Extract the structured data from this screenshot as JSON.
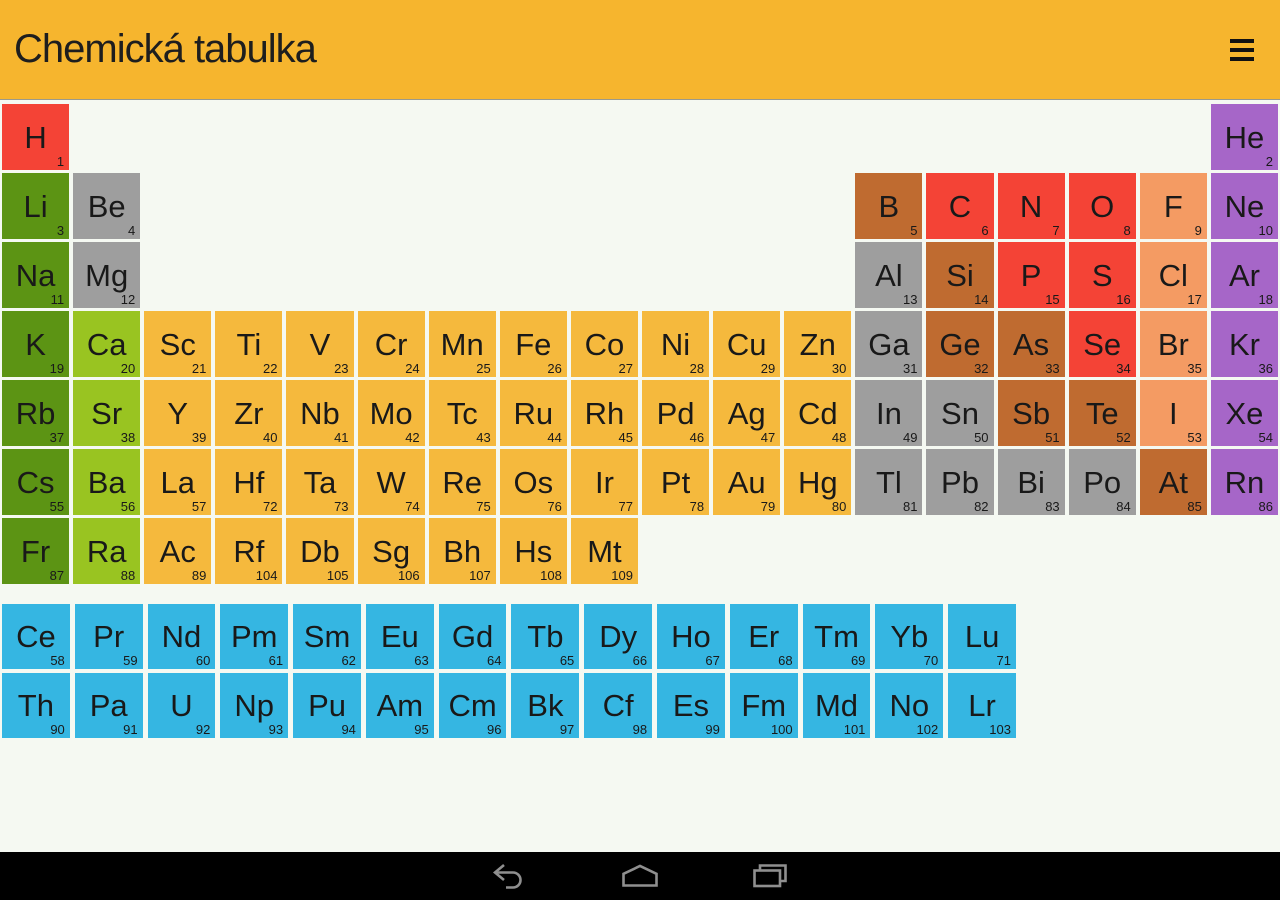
{
  "header": {
    "title": "Chemická tabulka",
    "menu_icon": "hamburger-icon"
  },
  "colors": {
    "appbar_bg": "#F6B52E",
    "page_bg": "#F5F9F2",
    "navbar_bg": "#000000",
    "nav_icon": "#8F8F8F",
    "alkali": "#5C9414",
    "alkaline": "#99C421",
    "metal": "#9E9E9E",
    "transition": "#F5B93D",
    "metalloid": "#BF6B30",
    "nonmetal": "#F44336",
    "halogen": "#F49B63",
    "noble": "#A666C8",
    "fblock": "#35B6E2"
  },
  "periodic_table": {
    "columns": 18,
    "rows": 7,
    "elements": [
      {
        "symbol": "H",
        "number": 1,
        "row": 1,
        "col": 1,
        "category": "nonmetal"
      },
      {
        "symbol": "He",
        "number": 2,
        "row": 1,
        "col": 18,
        "category": "noble"
      },
      {
        "symbol": "Li",
        "number": 3,
        "row": 2,
        "col": 1,
        "category": "alkali"
      },
      {
        "symbol": "Be",
        "number": 4,
        "row": 2,
        "col": 2,
        "category": "metal"
      },
      {
        "symbol": "B",
        "number": 5,
        "row": 2,
        "col": 13,
        "category": "metalloid"
      },
      {
        "symbol": "C",
        "number": 6,
        "row": 2,
        "col": 14,
        "category": "nonmetal"
      },
      {
        "symbol": "N",
        "number": 7,
        "row": 2,
        "col": 15,
        "category": "nonmetal"
      },
      {
        "symbol": "O",
        "number": 8,
        "row": 2,
        "col": 16,
        "category": "nonmetal"
      },
      {
        "symbol": "F",
        "number": 9,
        "row": 2,
        "col": 17,
        "category": "halogen"
      },
      {
        "symbol": "Ne",
        "number": 10,
        "row": 2,
        "col": 18,
        "category": "noble"
      },
      {
        "symbol": "Na",
        "number": 11,
        "row": 3,
        "col": 1,
        "category": "alkali"
      },
      {
        "symbol": "Mg",
        "number": 12,
        "row": 3,
        "col": 2,
        "category": "metal"
      },
      {
        "symbol": "Al",
        "number": 13,
        "row": 3,
        "col": 13,
        "category": "metal"
      },
      {
        "symbol": "Si",
        "number": 14,
        "row": 3,
        "col": 14,
        "category": "metalloid"
      },
      {
        "symbol": "P",
        "number": 15,
        "row": 3,
        "col": 15,
        "category": "nonmetal"
      },
      {
        "symbol": "S",
        "number": 16,
        "row": 3,
        "col": 16,
        "category": "nonmetal"
      },
      {
        "symbol": "Cl",
        "number": 17,
        "row": 3,
        "col": 17,
        "category": "halogen"
      },
      {
        "symbol": "Ar",
        "number": 18,
        "row": 3,
        "col": 18,
        "category": "noble"
      },
      {
        "symbol": "K",
        "number": 19,
        "row": 4,
        "col": 1,
        "category": "alkali"
      },
      {
        "symbol": "Ca",
        "number": 20,
        "row": 4,
        "col": 2,
        "category": "alkaline"
      },
      {
        "symbol": "Sc",
        "number": 21,
        "row": 4,
        "col": 3,
        "category": "transition"
      },
      {
        "symbol": "Ti",
        "number": 22,
        "row": 4,
        "col": 4,
        "category": "transition"
      },
      {
        "symbol": "V",
        "number": 23,
        "row": 4,
        "col": 5,
        "category": "transition"
      },
      {
        "symbol": "Cr",
        "number": 24,
        "row": 4,
        "col": 6,
        "category": "transition"
      },
      {
        "symbol": "Mn",
        "number": 25,
        "row": 4,
        "col": 7,
        "category": "transition"
      },
      {
        "symbol": "Fe",
        "number": 26,
        "row": 4,
        "col": 8,
        "category": "transition"
      },
      {
        "symbol": "Co",
        "number": 27,
        "row": 4,
        "col": 9,
        "category": "transition"
      },
      {
        "symbol": "Ni",
        "number": 28,
        "row": 4,
        "col": 10,
        "category": "transition"
      },
      {
        "symbol": "Cu",
        "number": 29,
        "row": 4,
        "col": 11,
        "category": "transition"
      },
      {
        "symbol": "Zn",
        "number": 30,
        "row": 4,
        "col": 12,
        "category": "transition"
      },
      {
        "symbol": "Ga",
        "number": 31,
        "row": 4,
        "col": 13,
        "category": "metal"
      },
      {
        "symbol": "Ge",
        "number": 32,
        "row": 4,
        "col": 14,
        "category": "metalloid"
      },
      {
        "symbol": "As",
        "number": 33,
        "row": 4,
        "col": 15,
        "category": "metalloid"
      },
      {
        "symbol": "Se",
        "number": 34,
        "row": 4,
        "col": 16,
        "category": "nonmetal"
      },
      {
        "symbol": "Br",
        "number": 35,
        "row": 4,
        "col": 17,
        "category": "halogen"
      },
      {
        "symbol": "Kr",
        "number": 36,
        "row": 4,
        "col": 18,
        "category": "noble"
      },
      {
        "symbol": "Rb",
        "number": 37,
        "row": 5,
        "col": 1,
        "category": "alkali"
      },
      {
        "symbol": "Sr",
        "number": 38,
        "row": 5,
        "col": 2,
        "category": "alkaline"
      },
      {
        "symbol": "Y",
        "number": 39,
        "row": 5,
        "col": 3,
        "category": "transition"
      },
      {
        "symbol": "Zr",
        "number": 40,
        "row": 5,
        "col": 4,
        "category": "transition"
      },
      {
        "symbol": "Nb",
        "number": 41,
        "row": 5,
        "col": 5,
        "category": "transition"
      },
      {
        "symbol": "Mo",
        "number": 42,
        "row": 5,
        "col": 6,
        "category": "transition"
      },
      {
        "symbol": "Tc",
        "number": 43,
        "row": 5,
        "col": 7,
        "category": "transition"
      },
      {
        "symbol": "Ru",
        "number": 44,
        "row": 5,
        "col": 8,
        "category": "transition"
      },
      {
        "symbol": "Rh",
        "number": 45,
        "row": 5,
        "col": 9,
        "category": "transition"
      },
      {
        "symbol": "Pd",
        "number": 46,
        "row": 5,
        "col": 10,
        "category": "transition"
      },
      {
        "symbol": "Ag",
        "number": 47,
        "row": 5,
        "col": 11,
        "category": "transition"
      },
      {
        "symbol": "Cd",
        "number": 48,
        "row": 5,
        "col": 12,
        "category": "transition"
      },
      {
        "symbol": "In",
        "number": 49,
        "row": 5,
        "col": 13,
        "category": "metal"
      },
      {
        "symbol": "Sn",
        "number": 50,
        "row": 5,
        "col": 14,
        "category": "metal"
      },
      {
        "symbol": "Sb",
        "number": 51,
        "row": 5,
        "col": 15,
        "category": "metalloid"
      },
      {
        "symbol": "Te",
        "number": 52,
        "row": 5,
        "col": 16,
        "category": "metalloid"
      },
      {
        "symbol": "I",
        "number": 53,
        "row": 5,
        "col": 17,
        "category": "halogen"
      },
      {
        "symbol": "Xe",
        "number": 54,
        "row": 5,
        "col": 18,
        "category": "noble"
      },
      {
        "symbol": "Cs",
        "number": 55,
        "row": 6,
        "col": 1,
        "category": "alkali"
      },
      {
        "symbol": "Ba",
        "number": 56,
        "row": 6,
        "col": 2,
        "category": "alkaline"
      },
      {
        "symbol": "La",
        "number": 57,
        "row": 6,
        "col": 3,
        "category": "transition"
      },
      {
        "symbol": "Hf",
        "number": 72,
        "row": 6,
        "col": 4,
        "category": "transition"
      },
      {
        "symbol": "Ta",
        "number": 73,
        "row": 6,
        "col": 5,
        "category": "transition"
      },
      {
        "symbol": "W",
        "number": 74,
        "row": 6,
        "col": 6,
        "category": "transition"
      },
      {
        "symbol": "Re",
        "number": 75,
        "row": 6,
        "col": 7,
        "category": "transition"
      },
      {
        "symbol": "Os",
        "number": 76,
        "row": 6,
        "col": 8,
        "category": "transition"
      },
      {
        "symbol": "Ir",
        "number": 77,
        "row": 6,
        "col": 9,
        "category": "transition"
      },
      {
        "symbol": "Pt",
        "number": 78,
        "row": 6,
        "col": 10,
        "category": "transition"
      },
      {
        "symbol": "Au",
        "number": 79,
        "row": 6,
        "col": 11,
        "category": "transition"
      },
      {
        "symbol": "Hg",
        "number": 80,
        "row": 6,
        "col": 12,
        "category": "transition"
      },
      {
        "symbol": "Tl",
        "number": 81,
        "row": 6,
        "col": 13,
        "category": "metal"
      },
      {
        "symbol": "Pb",
        "number": 82,
        "row": 6,
        "col": 14,
        "category": "metal"
      },
      {
        "symbol": "Bi",
        "number": 83,
        "row": 6,
        "col": 15,
        "category": "metal"
      },
      {
        "symbol": "Po",
        "number": 84,
        "row": 6,
        "col": 16,
        "category": "metal"
      },
      {
        "symbol": "At",
        "number": 85,
        "row": 6,
        "col": 17,
        "category": "metalloid"
      },
      {
        "symbol": "Rn",
        "number": 86,
        "row": 6,
        "col": 18,
        "category": "noble"
      },
      {
        "symbol": "Fr",
        "number": 87,
        "row": 7,
        "col": 1,
        "category": "alkali"
      },
      {
        "symbol": "Ra",
        "number": 88,
        "row": 7,
        "col": 2,
        "category": "alkaline"
      },
      {
        "symbol": "Ac",
        "number": 89,
        "row": 7,
        "col": 3,
        "category": "transition"
      },
      {
        "symbol": "Rf",
        "number": 104,
        "row": 7,
        "col": 4,
        "category": "transition"
      },
      {
        "symbol": "Db",
        "number": 105,
        "row": 7,
        "col": 5,
        "category": "transition"
      },
      {
        "symbol": "Sg",
        "number": 106,
        "row": 7,
        "col": 6,
        "category": "transition"
      },
      {
        "symbol": "Bh",
        "number": 107,
        "row": 7,
        "col": 7,
        "category": "transition"
      },
      {
        "symbol": "Hs",
        "number": 108,
        "row": 7,
        "col": 8,
        "category": "transition"
      },
      {
        "symbol": "Mt",
        "number": 109,
        "row": 7,
        "col": 9,
        "category": "transition"
      }
    ]
  },
  "f_block": {
    "columns": 14,
    "rows": 2,
    "elements": [
      {
        "symbol": "Ce",
        "number": 58,
        "row": 1,
        "col": 1,
        "category": "fblock"
      },
      {
        "symbol": "Pr",
        "number": 59,
        "row": 1,
        "col": 2,
        "category": "fblock"
      },
      {
        "symbol": "Nd",
        "number": 60,
        "row": 1,
        "col": 3,
        "category": "fblock"
      },
      {
        "symbol": "Pm",
        "number": 61,
        "row": 1,
        "col": 4,
        "category": "fblock"
      },
      {
        "symbol": "Sm",
        "number": 62,
        "row": 1,
        "col": 5,
        "category": "fblock"
      },
      {
        "symbol": "Eu",
        "number": 63,
        "row": 1,
        "col": 6,
        "category": "fblock"
      },
      {
        "symbol": "Gd",
        "number": 64,
        "row": 1,
        "col": 7,
        "category": "fblock"
      },
      {
        "symbol": "Tb",
        "number": 65,
        "row": 1,
        "col": 8,
        "category": "fblock"
      },
      {
        "symbol": "Dy",
        "number": 66,
        "row": 1,
        "col": 9,
        "category": "fblock"
      },
      {
        "symbol": "Ho",
        "number": 67,
        "row": 1,
        "col": 10,
        "category": "fblock"
      },
      {
        "symbol": "Er",
        "number": 68,
        "row": 1,
        "col": 11,
        "category": "fblock"
      },
      {
        "symbol": "Tm",
        "number": 69,
        "row": 1,
        "col": 12,
        "category": "fblock"
      },
      {
        "symbol": "Yb",
        "number": 70,
        "row": 1,
        "col": 13,
        "category": "fblock"
      },
      {
        "symbol": "Lu",
        "number": 71,
        "row": 1,
        "col": 14,
        "category": "fblock"
      },
      {
        "symbol": "Th",
        "number": 90,
        "row": 2,
        "col": 1,
        "category": "fblock"
      },
      {
        "symbol": "Pa",
        "number": 91,
        "row": 2,
        "col": 2,
        "category": "fblock"
      },
      {
        "symbol": "U",
        "number": 92,
        "row": 2,
        "col": 3,
        "category": "fblock"
      },
      {
        "symbol": "Np",
        "number": 93,
        "row": 2,
        "col": 4,
        "category": "fblock"
      },
      {
        "symbol": "Pu",
        "number": 94,
        "row": 2,
        "col": 5,
        "category": "fblock"
      },
      {
        "symbol": "Am",
        "number": 95,
        "row": 2,
        "col": 6,
        "category": "fblock"
      },
      {
        "symbol": "Cm",
        "number": 96,
        "row": 2,
        "col": 7,
        "category": "fblock"
      },
      {
        "symbol": "Bk",
        "number": 97,
        "row": 2,
        "col": 8,
        "category": "fblock"
      },
      {
        "symbol": "Cf",
        "number": 98,
        "row": 2,
        "col": 9,
        "category": "fblock"
      },
      {
        "symbol": "Es",
        "number": 99,
        "row": 2,
        "col": 10,
        "category": "fblock"
      },
      {
        "symbol": "Fm",
        "number": 100,
        "row": 2,
        "col": 11,
        "category": "fblock"
      },
      {
        "symbol": "Md",
        "number": 101,
        "row": 2,
        "col": 12,
        "category": "fblock"
      },
      {
        "symbol": "No",
        "number": 102,
        "row": 2,
        "col": 13,
        "category": "fblock"
      },
      {
        "symbol": "Lr",
        "number": 103,
        "row": 2,
        "col": 14,
        "category": "fblock"
      }
    ]
  },
  "nav_bar": {
    "buttons": [
      {
        "icon": "back-icon"
      },
      {
        "icon": "home-icon"
      },
      {
        "icon": "recents-icon"
      }
    ]
  }
}
